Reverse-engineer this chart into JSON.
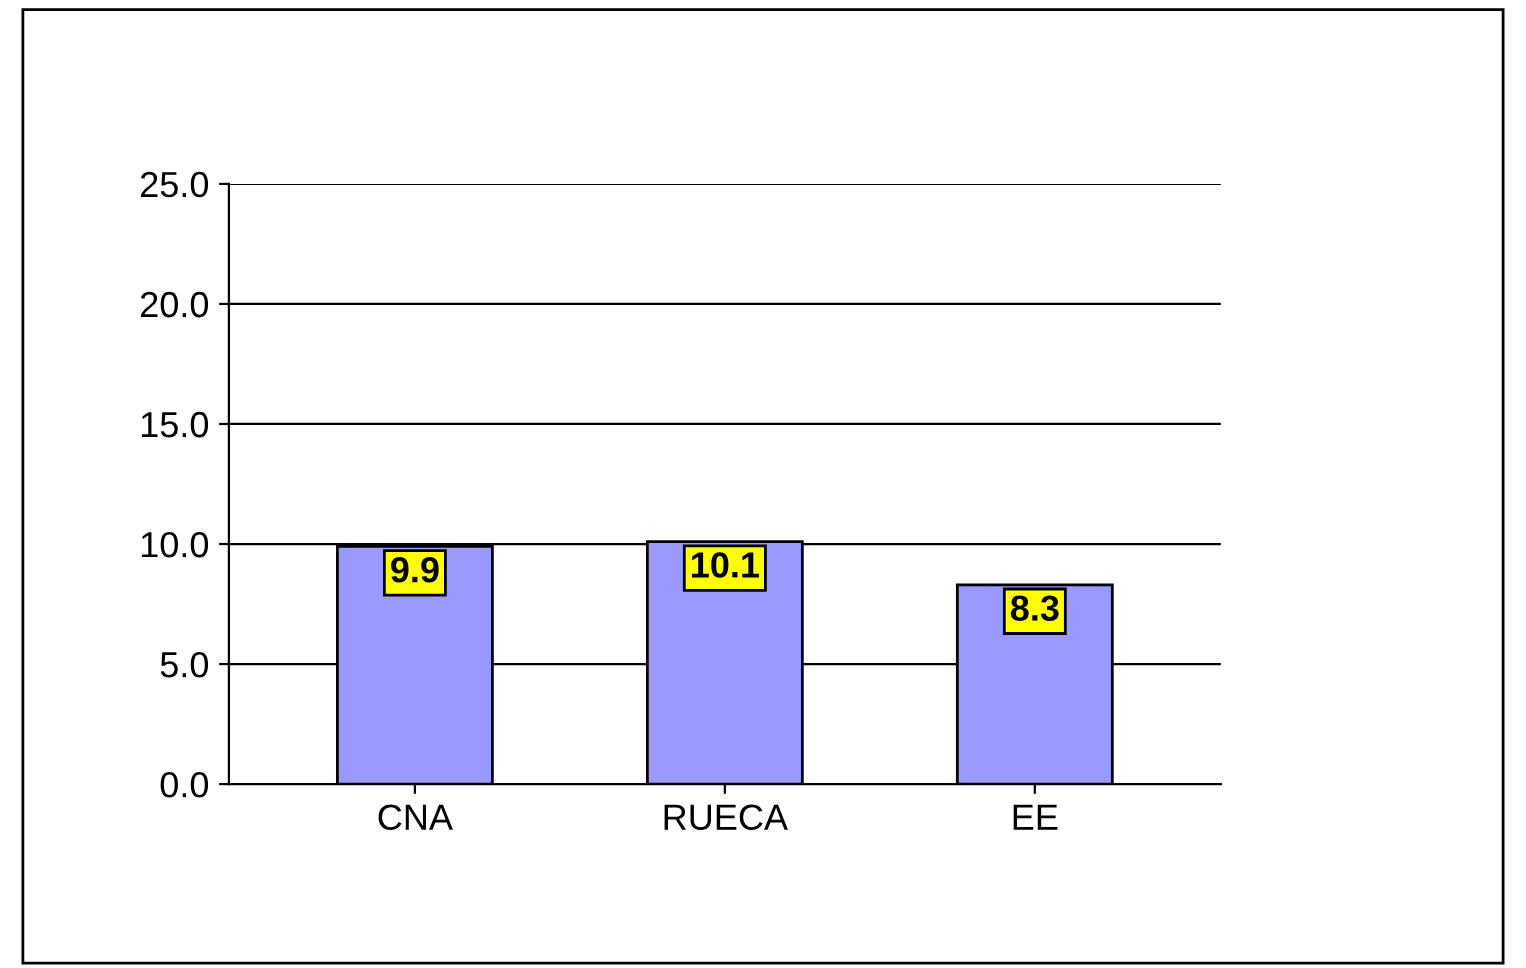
{
  "chart_data": {
    "type": "bar",
    "categories": [
      "CNA",
      "RUECA",
      "EE"
    ],
    "values": [
      9.9,
      10.1,
      8.3
    ],
    "color": "#9999ff",
    "ylim": [
      0,
      25
    ],
    "yticks": [
      {
        "value": 0,
        "label": "0.0"
      },
      {
        "value": 5,
        "label": "5.0"
      },
      {
        "value": 10,
        "label": "10.0"
      },
      {
        "value": 15,
        "label": "15.0"
      },
      {
        "value": 20,
        "label": "20.0"
      },
      {
        "value": 25,
        "label": "25.0"
      }
    ],
    "grid": "y",
    "data_labels": true
  }
}
